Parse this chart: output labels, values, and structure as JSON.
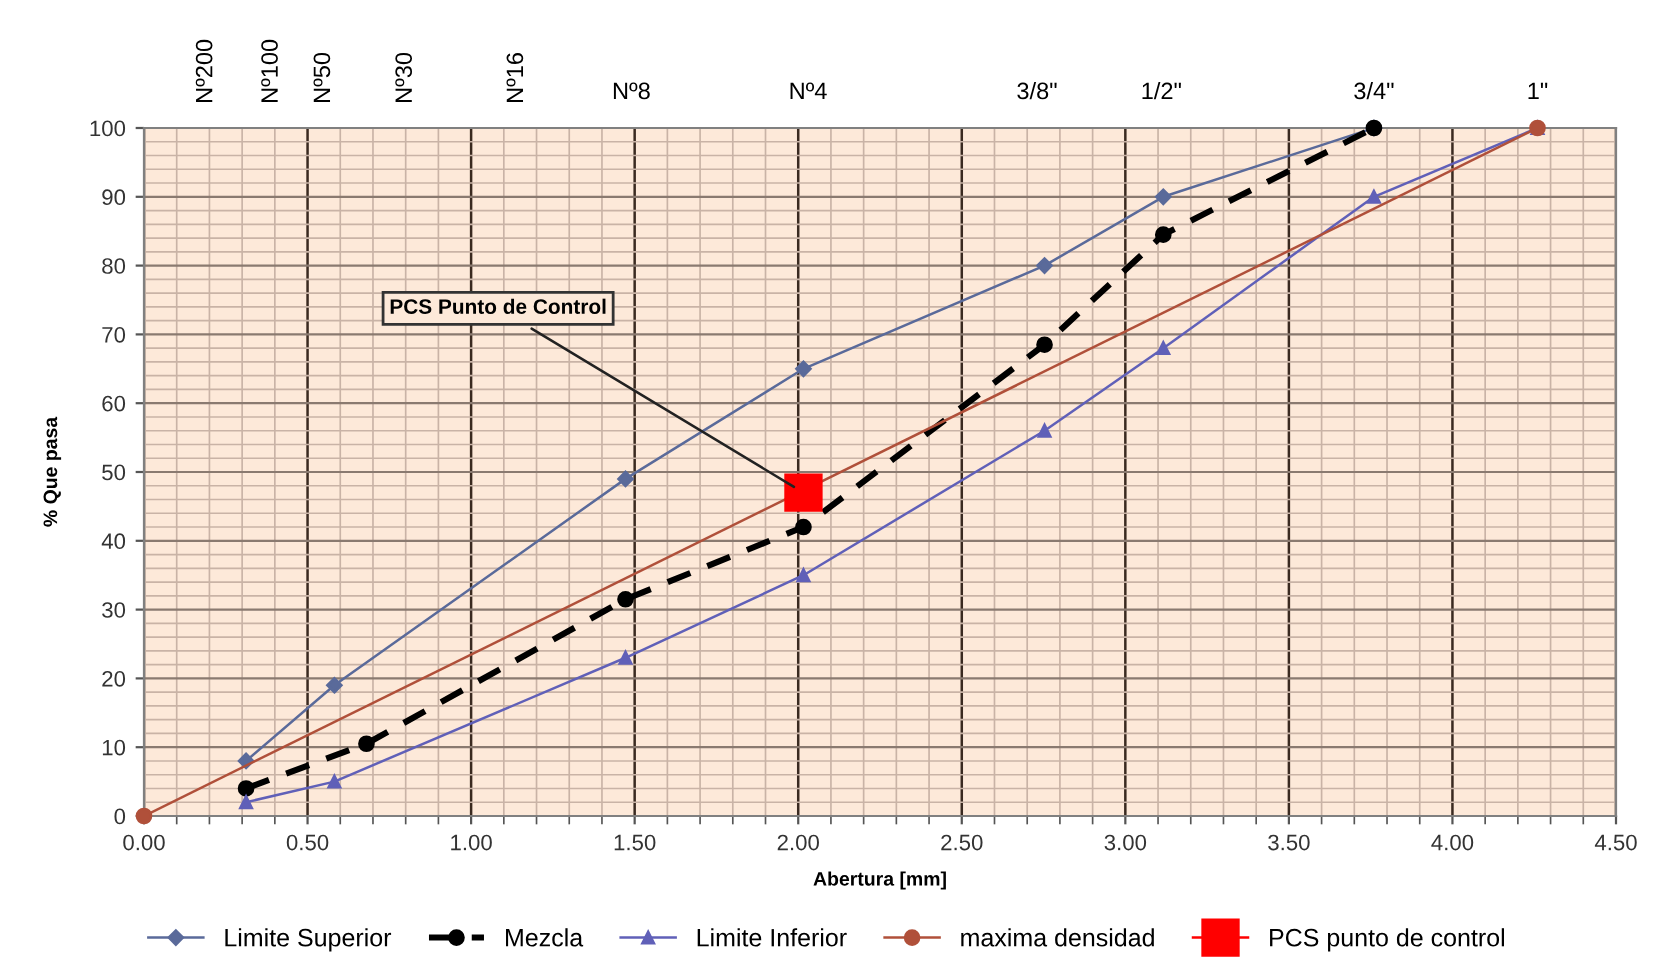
{
  "chart_data": {
    "type": "line",
    "xlabel": "Abertura [mm]",
    "ylabel": "% Que pasa",
    "xlim": [
      0,
      4.5
    ],
    "xticks": [
      {
        "value": 0,
        "label": "0.00"
      },
      {
        "value": 0.5,
        "label": "0.50"
      },
      {
        "value": 1,
        "label": "1.00"
      },
      {
        "value": 1.5,
        "label": "1.50"
      },
      {
        "value": 2,
        "label": "2.00"
      },
      {
        "value": 2.5,
        "label": "2.50"
      },
      {
        "value": 3,
        "label": "3.00"
      },
      {
        "value": 3.5,
        "label": "3.50"
      },
      {
        "value": 4,
        "label": "4.00"
      },
      {
        "value": 4.5,
        "label": "4.50"
      }
    ],
    "ylim": [
      0,
      100
    ],
    "yticks": [
      0,
      10,
      20,
      30,
      40,
      50,
      60,
      70,
      80,
      90,
      100
    ],
    "grid": true,
    "legend": "bottom",
    "series": [
      {
        "name": "Limite Superior",
        "color": "#5a6a9a",
        "marker": "diamond",
        "line_style": "solid",
        "x": [
          0.312,
          0.582,
          1.472,
          2.016,
          2.753,
          3.116,
          3.76
        ],
        "values": [
          8,
          19,
          49,
          65,
          80,
          90,
          100
        ]
      },
      {
        "name": "Mezcla",
        "color": "#000000",
        "marker": "circle",
        "line_style": "dashed",
        "x": [
          0.312,
          0.68,
          1.472,
          2.016,
          2.753,
          3.116,
          3.76
        ],
        "values": [
          4,
          10.5,
          31.5,
          42,
          68.5,
          84.5,
          100
        ]
      },
      {
        "name": "Limite Inferior",
        "color": "#6060b8",
        "marker": "triangle",
        "line_style": "solid",
        "x": [
          0.312,
          0.582,
          1.472,
          2.016,
          2.753,
          3.116,
          3.76,
          4.26
        ],
        "values": [
          2,
          5,
          23,
          35,
          56,
          68,
          90,
          100
        ]
      },
      {
        "name": "maxima densidad",
        "color": "#b0503a",
        "marker": "circle",
        "line_style": "solid",
        "x": [
          0,
          4.26
        ],
        "values": [
          0,
          100
        ]
      },
      {
        "name": "PCS punto de control",
        "color": "#ff0000",
        "marker": "square",
        "line_style": "solid",
        "x": [
          2.016
        ],
        "values": [
          47
        ]
      }
    ],
    "annotations": [
      {
        "text": "PCS Punto de Control",
        "x": 2.016,
        "y": 47
      },
      "Nº200",
      "Nº100",
      "Nº50",
      "Nº30",
      "Nº16",
      "Nº8",
      "Nº4",
      "3/8\"",
      "1/2\"",
      "3/4\"",
      "1\""
    ]
  }
}
